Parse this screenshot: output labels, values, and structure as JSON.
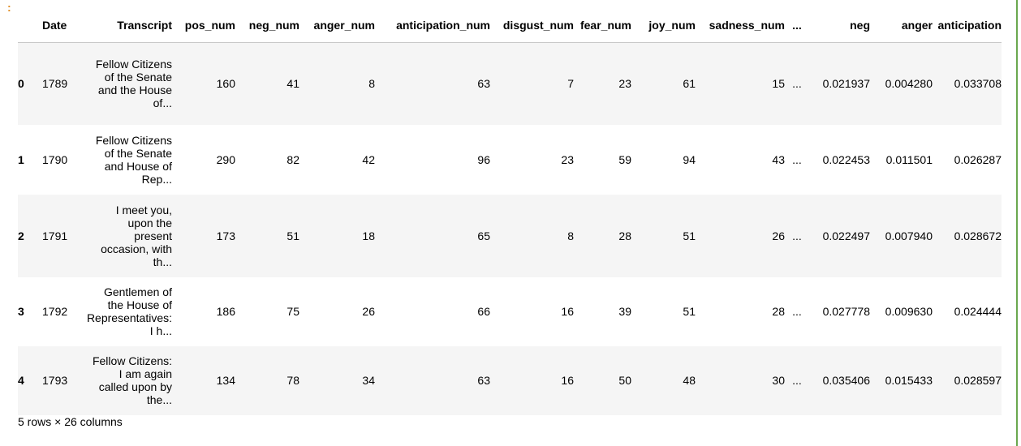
{
  "prompt_marker": ":",
  "table": {
    "columns": [
      "",
      "Date",
      "Transcript",
      "pos_num",
      "neg_num",
      "anger_num",
      "anticipation_num",
      "disgust_num",
      "fear_num",
      "joy_num",
      "sadness_num",
      "...",
      "neg",
      "anger",
      "anticipation"
    ],
    "rows": [
      {
        "index": "0",
        "date": "1789",
        "transcript": "Fellow Citizens\nof the Senate\nand the House\nof...",
        "pos_num": "160",
        "neg_num": "41",
        "anger_num": "8",
        "anticipation_num": "63",
        "disgust_num": "7",
        "fear_num": "23",
        "joy_num": "61",
        "sadness_num": "15",
        "ellipsis": "...",
        "neg": "0.021937",
        "anger": "0.004280",
        "anticipation": "0.033708"
      },
      {
        "index": "1",
        "date": "1790",
        "transcript": "Fellow Citizens\nof the Senate\nand House of\nRep...",
        "pos_num": "290",
        "neg_num": "82",
        "anger_num": "42",
        "anticipation_num": "96",
        "disgust_num": "23",
        "fear_num": "59",
        "joy_num": "94",
        "sadness_num": "43",
        "ellipsis": "...",
        "neg": "0.022453",
        "anger": "0.011501",
        "anticipation": "0.026287"
      },
      {
        "index": "2",
        "date": "1791",
        "transcript": "I meet you,\nupon the\npresent\noccasion, with\nth...",
        "pos_num": "173",
        "neg_num": "51",
        "anger_num": "18",
        "anticipation_num": "65",
        "disgust_num": "8",
        "fear_num": "28",
        "joy_num": "51",
        "sadness_num": "26",
        "ellipsis": "...",
        "neg": "0.022497",
        "anger": "0.007940",
        "anticipation": "0.028672"
      },
      {
        "index": "3",
        "date": "1792",
        "transcript": "Gentlemen of\nthe House of\nRepresentatives:\nI h...",
        "pos_num": "186",
        "neg_num": "75",
        "anger_num": "26",
        "anticipation_num": "66",
        "disgust_num": "16",
        "fear_num": "39",
        "joy_num": "51",
        "sadness_num": "28",
        "ellipsis": "...",
        "neg": "0.027778",
        "anger": "0.009630",
        "anticipation": "0.024444"
      },
      {
        "index": "4",
        "date": "1793",
        "transcript": "Fellow Citizens:\nI am again\ncalled upon by\nthe...",
        "pos_num": "134",
        "neg_num": "78",
        "anger_num": "34",
        "anticipation_num": "63",
        "disgust_num": "16",
        "fear_num": "50",
        "joy_num": "48",
        "sadness_num": "30",
        "ellipsis": "...",
        "neg": "0.035406",
        "anger": "0.015433",
        "anticipation": "0.028597"
      }
    ]
  },
  "footer": "5 rows × 26 columns",
  "colors": {
    "prompt_marker": "#e08a1e",
    "cell_border": "#6aa84f",
    "row_stripe": "#f5f5f5"
  }
}
